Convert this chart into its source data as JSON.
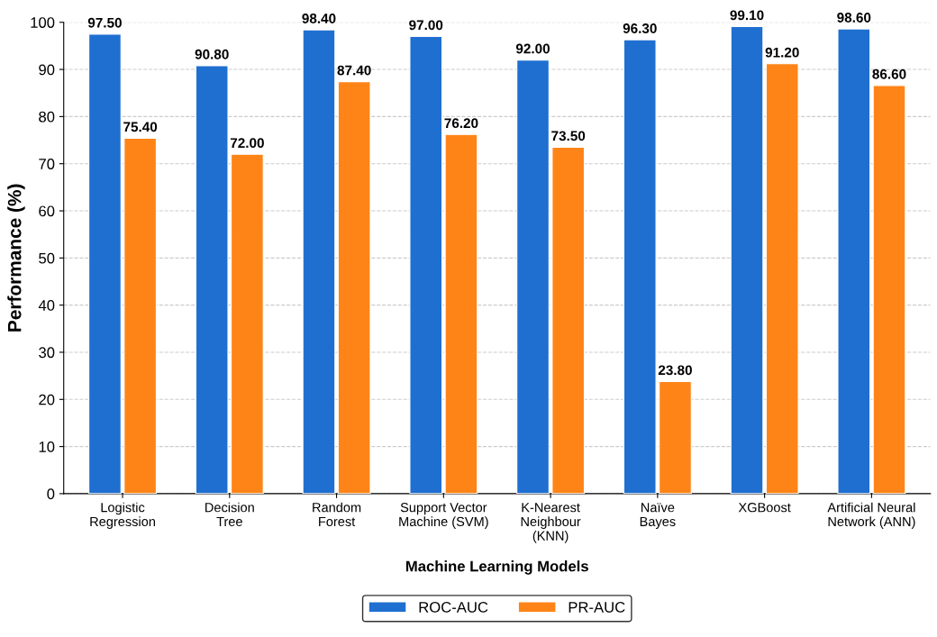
{
  "chart_data": {
    "type": "bar",
    "categories": [
      "Logistic\nRegression",
      "Decision\nTree",
      "Random\nForest",
      "Support Vector\nMachine (SVM)",
      "K-Nearest\nNeighbour\n(KNN)",
      "Naïve\nBayes",
      "XGBoost",
      "Artificial Neural\nNetwork (ANN)"
    ],
    "series": [
      {
        "name": "ROC-AUC",
        "color": "#1f6fd0",
        "values": [
          97.5,
          90.8,
          98.4,
          97.0,
          92.0,
          96.3,
          99.1,
          98.6
        ],
        "value_labels": [
          "97.50",
          "90.80",
          "98.40",
          "97.00",
          "92.00",
          "96.30",
          "99.10",
          "98.60"
        ]
      },
      {
        "name": "PR-AUC",
        "color": "#ff8417",
        "values": [
          75.4,
          72.0,
          87.4,
          76.2,
          73.5,
          23.8,
          91.2,
          86.6
        ],
        "value_labels": [
          "75.40",
          "72.00",
          "87.40",
          "76.20",
          "73.50",
          "23.80",
          "91.20",
          "86.60"
        ]
      }
    ],
    "xlabel": "Machine Learning Models",
    "ylabel": "Performance (%)",
    "ylim": [
      0,
      100
    ],
    "yticks": [
      0,
      10,
      20,
      30,
      40,
      50,
      60,
      70,
      80,
      90,
      100
    ],
    "grid": "y",
    "legend": "bottom"
  }
}
